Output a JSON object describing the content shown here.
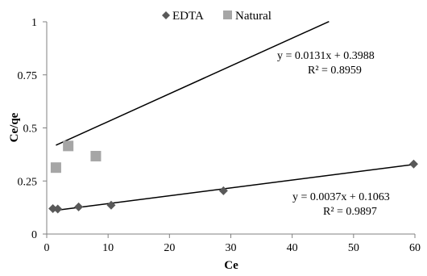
{
  "chart_data": {
    "type": "scatter",
    "xlabel": "Ce",
    "ylabel": "Ce/qe",
    "xlim": [
      0,
      60
    ],
    "ylim": [
      0,
      1
    ],
    "x_ticks": [
      "0",
      "10",
      "20",
      "30",
      "40",
      "50",
      "60"
    ],
    "y_ticks": [
      "0",
      "0.25",
      "0.5",
      "0.75",
      "1"
    ],
    "x_tick_values": [
      0,
      10,
      20,
      30,
      40,
      50,
      60
    ],
    "y_tick_values": [
      0,
      0.25,
      0.5,
      0.75,
      1
    ],
    "grid": false,
    "legend_position": "top",
    "series": [
      {
        "name": "EDTA",
        "marker": "diamond",
        "color": "#595959",
        "points": [
          [
            1.0,
            0.12
          ],
          [
            1.8,
            0.118
          ],
          [
            5.2,
            0.128
          ],
          [
            10.5,
            0.136
          ],
          [
            28.8,
            0.204
          ],
          [
            59.8,
            0.33
          ]
        ],
        "trendline": {
          "slope": 0.0037,
          "intercept": 0.1063,
          "x_range": [
            1.0,
            59.8
          ],
          "equation": "y = 0.0037x + 0.1063",
          "r2": "R² = 0.9897"
        }
      },
      {
        "name": "Natural",
        "marker": "square",
        "color": "#a6a6a6",
        "points": [
          [
            1.5,
            0.313
          ],
          [
            3.5,
            0.415
          ],
          [
            8.0,
            0.367
          ]
        ],
        "trendline": {
          "slope": 0.0131,
          "intercept": 0.3988,
          "x_range": [
            1.5,
            46.0
          ],
          "equation": "y = 0.0131x + 0.3988",
          "r2": "R² = 0.8959"
        }
      }
    ]
  }
}
